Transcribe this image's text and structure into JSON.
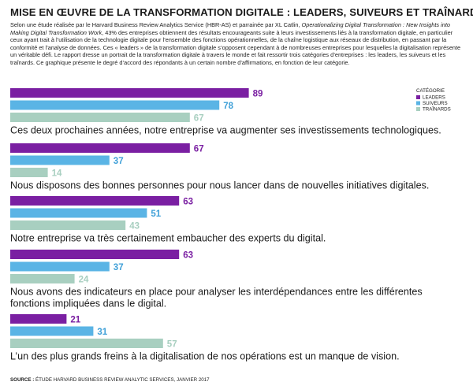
{
  "title": "MISE EN ŒUVRE DE LA TRANSFORMATION DIGITALE : LEADERS, SUIVEURS ET TRAÎNARDS",
  "intro": {
    "part1": "Selon une étude réalisée par le Harvard Business Review Analytics Service (HBR-AS) et parrainée par XL Catlin, ",
    "report_title": "Operationalizing Digital Transformation : New Insights into Making Digital Transformation Work",
    "part2": ", 43% des entreprises obtiennent des résultats encourageants suite à leurs investissements liés à la transformation digitale, en particulier ceux ayant trait à l’utilisation de la technologie digitale pour l’ensemble des fonctions opérationnelles, de la chaîne logistique aux réseaux de distribution, en passant par la conformité et l’analyse de données. Ces « leaders » de la transformation digitale s’opposent cependant à de nombreuses entreprises pour lesquelles la digitalisation représente un véritable défi. Le rapport dresse un portrait de la transformation digitale à travers le monde et fait ressortir trois catégories d’entreprises : les leaders, les suiveurs et les traînards. Ce graphique présente le degré d’accord des répondants à un certain nombre d’affirmations, en fonction de leur catégorie."
  },
  "source": {
    "label": "SOURCE :",
    "text": " ÉTUDE HARVARD BUSINESS REVIEW ANALYTIC SERVICES, JANVIER 2017"
  },
  "colors": {
    "leaders": "#7a1fa2",
    "suiveurs": "#5ab4e5",
    "trainards": "#a8cfc0",
    "leaders_label": "#7a1fa2",
    "suiveurs_label": "#3fa0d8",
    "trainards_label": "#a8cfc0",
    "text": "#1a1a1a"
  },
  "chart_data": {
    "type": "bar",
    "orientation": "horizontal",
    "legend": {
      "title": "CATÉGORIE",
      "position": "top-right"
    },
    "series": [
      {
        "name": "LEADERS",
        "values": [
          89,
          67,
          63,
          63,
          21
        ]
      },
      {
        "name": "SUIVEURS",
        "values": [
          78,
          37,
          51,
          37,
          31
        ]
      },
      {
        "name": "TRAÎNARDS",
        "values": [
          67,
          14,
          43,
          24,
          57
        ]
      }
    ],
    "categories": [
      "Ces deux prochaines années, notre entreprise va augmenter ses investissements technologiques.",
      "Nous disposons des bonnes personnes pour nous lancer dans de nouvelles initiatives digitales.",
      "Notre entreprise va très certainement embaucher des experts du digital.",
      "Nous avons des indicateurs en place pour analyser les interdépendances entre les différentes fonctions impliquées dans le digital.",
      "L’un des plus grands freins à la digitalisation de nos opérations est un manque de vision."
    ],
    "xlim": [
      0,
      100
    ],
    "grid": false
  }
}
